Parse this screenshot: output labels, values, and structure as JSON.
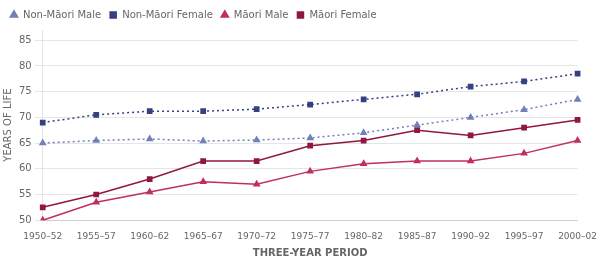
{
  "chart_data": {
    "type": "line",
    "categories": [
      "1950–52",
      "1955–57",
      "1960–62",
      "1965–67",
      "1970–72",
      "1975–77",
      "1980–82",
      "1985–87",
      "1990–92",
      "1995–97",
      "2000–02"
    ],
    "xlabel": "THREE-YEAR PERIOD",
    "ylabel": "YEARS OF LIFE",
    "ylim": [
      50,
      87
    ],
    "yticks": [
      50,
      55,
      60,
      65,
      70,
      75,
      80,
      85
    ],
    "grid": true,
    "legend": "upper left",
    "series": [
      {
        "name": "Non-Māori Male",
        "color": "#7080b8",
        "marker": "triangle",
        "line_style": "dotted",
        "values": [
          65.0,
          65.5,
          65.8,
          65.4,
          65.6,
          66.0,
          67.0,
          68.5,
          70.0,
          71.5,
          73.5
        ]
      },
      {
        "name": "Non-Māori Female",
        "color": "#374080",
        "marker": "square",
        "line_style": "dotted",
        "values": [
          69.0,
          70.5,
          71.2,
          71.2,
          71.6,
          72.5,
          73.5,
          74.5,
          76.0,
          77.0,
          78.5
        ]
      },
      {
        "name": "Māori Male",
        "color": "#c0305a",
        "marker": "triangle",
        "line_style": "solid",
        "values": [
          50.0,
          53.5,
          55.5,
          57.5,
          57.0,
          59.5,
          61.0,
          61.5,
          61.5,
          63.0,
          65.5
        ]
      },
      {
        "name": "Māori Female",
        "color": "#901840",
        "marker": "square",
        "line_style": "solid",
        "values": [
          52.5,
          55.0,
          58.0,
          61.5,
          61.5,
          64.5,
          65.5,
          67.5,
          66.5,
          68.0,
          69.5
        ]
      }
    ]
  }
}
